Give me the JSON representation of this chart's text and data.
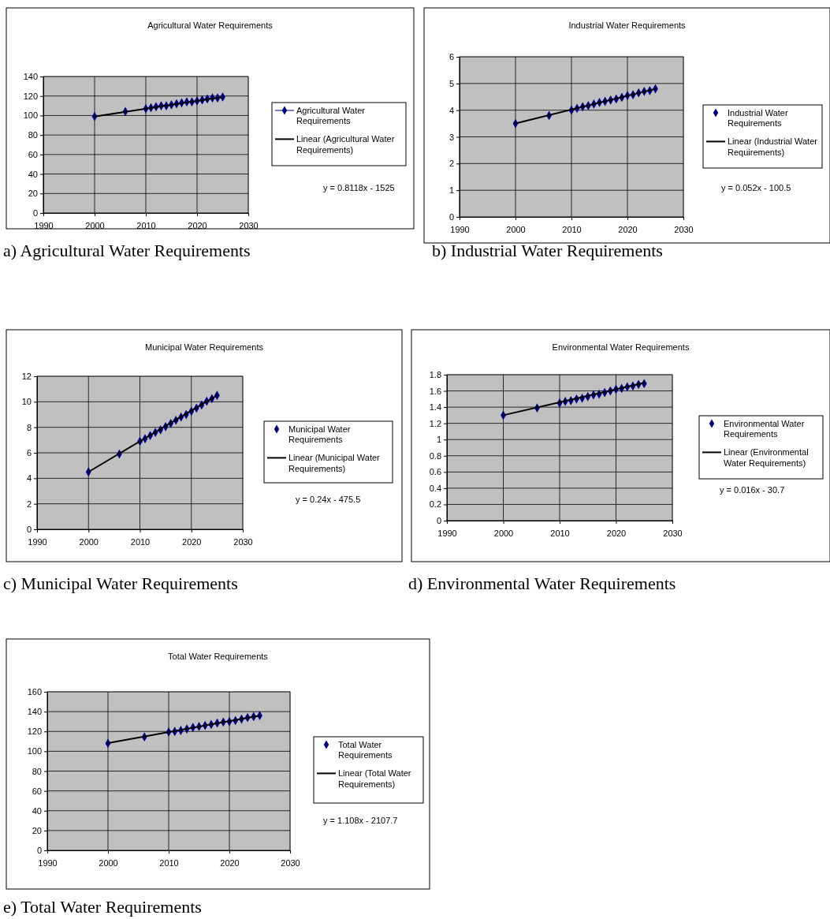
{
  "chart_data": [
    {
      "type": "line",
      "title": "Agricultural Water Requirements",
      "xlim": [
        1990,
        2030
      ],
      "xticks": [
        1990,
        2000,
        2010,
        2020,
        2030
      ],
      "ylim": [
        0,
        140
      ],
      "yticks": [
        0,
        20,
        40,
        60,
        80,
        100,
        120,
        140
      ],
      "grid": true,
      "legend": "right",
      "marker": "diamond",
      "annotations": [
        "y = 0.8118x - 1525",
        "a) Agricultural Water Requirements"
      ],
      "series": [
        {
          "name": "Agricultural Water Requirements",
          "color": "#000080",
          "x": [
            2000,
            2006,
            2010,
            2011,
            2012,
            2013,
            2014,
            2015,
            2016,
            2017,
            2018,
            2019,
            2020,
            2021,
            2022,
            2023,
            2024,
            2025
          ],
          "values": [
            99,
            104,
            107,
            108,
            109,
            110,
            110,
            111,
            112,
            113,
            114,
            114,
            115,
            116,
            117,
            118,
            118,
            119
          ]
        },
        {
          "name": "Linear (Agricultural Water Requirements)",
          "type": "line",
          "marker": "none",
          "color": "#000000",
          "x": [
            2000,
            2025
          ],
          "values": [
            99,
            119
          ]
        }
      ]
    },
    {
      "type": "scatter",
      "title": "Industrial Water Requirements",
      "xlim": [
        1990,
        2030
      ],
      "xticks": [
        1990,
        2000,
        2010,
        2020,
        2030
      ],
      "ylim": [
        0,
        6
      ],
      "yticks": [
        0,
        1,
        2,
        3,
        4,
        5,
        6
      ],
      "grid": true,
      "legend": "right",
      "marker": "diamond",
      "annotations": [
        "y = 0.052x - 100.5",
        "b) Industrial Water Requirements"
      ],
      "series": [
        {
          "name": "Industrial Water Requirements",
          "color": "#000080",
          "x": [
            2000,
            2006,
            2010,
            2011,
            2012,
            2013,
            2014,
            2015,
            2016,
            2017,
            2018,
            2019,
            2020,
            2021,
            2022,
            2023,
            2024,
            2025
          ],
          "values": [
            3.5,
            3.8,
            4.0,
            4.07,
            4.13,
            4.17,
            4.23,
            4.29,
            4.33,
            4.38,
            4.42,
            4.48,
            4.55,
            4.58,
            4.65,
            4.7,
            4.73,
            4.8
          ]
        },
        {
          "name": "Linear (Industrial Water Requirements)",
          "type": "line",
          "marker": "none",
          "color": "#000000",
          "x": [
            2000,
            2025
          ],
          "values": [
            3.5,
            4.8
          ]
        }
      ]
    },
    {
      "type": "scatter",
      "title": "Municipal Water Requirements",
      "xlim": [
        1990,
        2030
      ],
      "xticks": [
        1990,
        2000,
        2010,
        2020,
        2030
      ],
      "ylim": [
        0,
        12
      ],
      "yticks": [
        0,
        2,
        4,
        6,
        8,
        10,
        12
      ],
      "grid": true,
      "legend": "right",
      "marker": "diamond",
      "annotations": [
        "y = 0.24x - 475.5",
        "c) Municipal Water Requirements"
      ],
      "series": [
        {
          "name": "Municipal Water Requirements",
          "color": "#000080",
          "x": [
            2000,
            2006,
            2010,
            2011,
            2012,
            2013,
            2014,
            2015,
            2016,
            2017,
            2018,
            2019,
            2020,
            2021,
            2022,
            2023,
            2024,
            2025
          ],
          "values": [
            4.5,
            5.9,
            6.9,
            7.1,
            7.35,
            7.6,
            7.8,
            8.05,
            8.3,
            8.55,
            8.8,
            9.0,
            9.25,
            9.5,
            9.75,
            10.05,
            10.25,
            10.5
          ]
        },
        {
          "name": "Linear (Municipal Water Requirements)",
          "type": "line",
          "marker": "none",
          "color": "#000000",
          "x": [
            2000,
            2025
          ],
          "values": [
            4.5,
            10.5
          ]
        }
      ]
    },
    {
      "type": "scatter",
      "title": "Environmental Water Requirements",
      "xlim": [
        1990,
        2030
      ],
      "xticks": [
        1990,
        2000,
        2010,
        2020,
        2030
      ],
      "ylim": [
        0,
        1.8
      ],
      "yticks": [
        0,
        0.2,
        0.4,
        0.6,
        0.8,
        1,
        1.2,
        1.4,
        1.6,
        1.8
      ],
      "grid": true,
      "legend": "right",
      "marker": "diamond",
      "annotations": [
        "y = 0.016x - 30.7",
        "d) Environmental Water Requirements"
      ],
      "series": [
        {
          "name": "Environmental Water Requirements",
          "color": "#000080",
          "x": [
            2000,
            2006,
            2010,
            2011,
            2012,
            2013,
            2014,
            2015,
            2016,
            2017,
            2018,
            2019,
            2020,
            2021,
            2022,
            2023,
            2024,
            2025
          ],
          "values": [
            1.3,
            1.39,
            1.45,
            1.47,
            1.48,
            1.5,
            1.51,
            1.53,
            1.55,
            1.56,
            1.58,
            1.6,
            1.62,
            1.63,
            1.65,
            1.66,
            1.68,
            1.69
          ]
        },
        {
          "name": "Linear (Environmental Water Requirements)",
          "type": "line",
          "marker": "none",
          "color": "#000000",
          "x": [
            2000,
            2025
          ],
          "values": [
            1.3,
            1.7
          ]
        }
      ]
    },
    {
      "type": "scatter",
      "title": "Total Water Requirements",
      "xlim": [
        1990,
        2030
      ],
      "xticks": [
        1990,
        2000,
        2010,
        2020,
        2030
      ],
      "ylim": [
        0,
        160
      ],
      "yticks": [
        0,
        20,
        40,
        60,
        80,
        100,
        120,
        140,
        160
      ],
      "grid": true,
      "legend": "right",
      "marker": "diamond",
      "annotations": [
        "y = 1.108x - 2107.7",
        "e) Total Water Requirements"
      ],
      "series": [
        {
          "name": "Total Water Requirements",
          "color": "#000080",
          "x": [
            2000,
            2006,
            2010,
            2011,
            2012,
            2013,
            2014,
            2015,
            2016,
            2017,
            2018,
            2019,
            2020,
            2021,
            2022,
            2023,
            2024,
            2025
          ],
          "values": [
            108,
            114.5,
            119.5,
            120,
            121,
            122.5,
            124,
            125,
            126,
            127,
            128.5,
            129.5,
            130,
            131,
            132.5,
            134,
            135,
            136
          ]
        },
        {
          "name": "Linear (Total Water Requirements)",
          "type": "line",
          "marker": "none",
          "color": "#000000",
          "x": [
            2000,
            2025
          ],
          "values": [
            108.3,
            136.0
          ]
        }
      ]
    }
  ]
}
